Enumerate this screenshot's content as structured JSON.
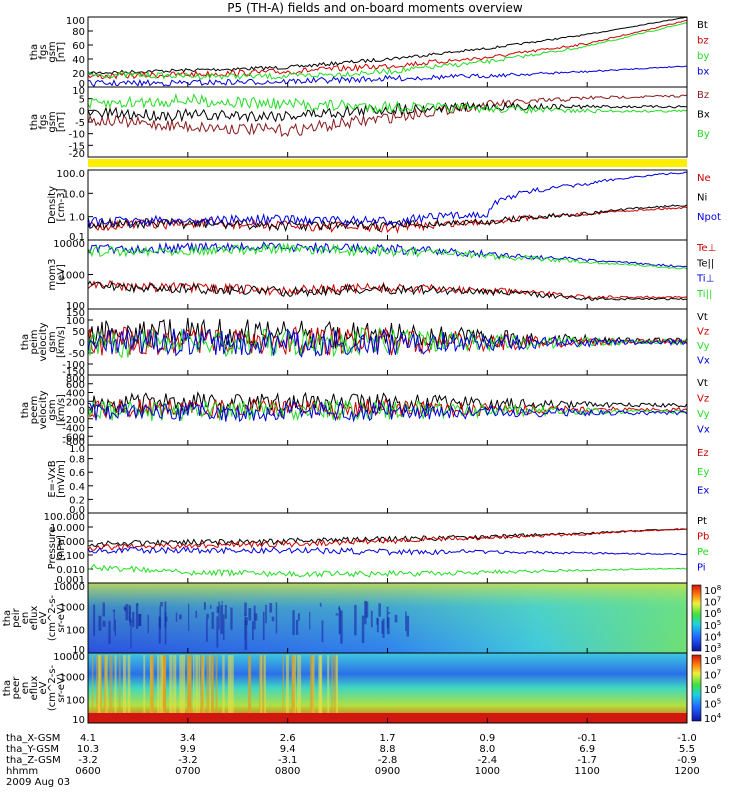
{
  "title": "P5 (TH-A) fields and on-board moments overview",
  "date": "2009 Aug 03",
  "colors": {
    "black": "#000000",
    "red": "#cc0000",
    "green": "#22dd22",
    "blue": "#0000dd",
    "brown": "#8b1a1a",
    "yellow": "#ffee00"
  },
  "time_axis": {
    "start": "0600",
    "end": "1200",
    "range_hours": [
      6,
      12
    ]
  },
  "footer": {
    "labels": [
      "tha_X-GSM",
      "tha_Y-GSM",
      "tha_Z-GSM",
      "hhmm"
    ],
    "columns": [
      [
        "4.1",
        "10.3",
        "-3.2",
        "0600"
      ],
      [
        "3.4",
        "9.9",
        "-3.2",
        "0700"
      ],
      [
        "2.6",
        "9.4",
        "-3.1",
        "0800"
      ],
      [
        "1.7",
        "8.8",
        "-2.8",
        "0900"
      ],
      [
        "0.9",
        "8.0",
        "-2.4",
        "1000"
      ],
      [
        "-0.1",
        "6.9",
        "-1.7",
        "1100"
      ],
      [
        "-1.0",
        "5.5",
        "-0.9",
        "1200"
      ]
    ]
  },
  "chart_data": [
    {
      "type": "line",
      "ylabel": [
        "tha",
        "fgs",
        "gsm",
        "[nT]"
      ],
      "yticks": [
        "100",
        "80",
        "60",
        "40",
        "20",
        "0"
      ],
      "ylim": [
        0,
        100
      ],
      "series": [
        {
          "name": "Bt",
          "color": "#000000",
          "x": [
            6,
            7,
            8,
            9,
            10,
            11,
            12
          ],
          "y": [
            20,
            24,
            28,
            40,
            55,
            75,
            100
          ]
        },
        {
          "name": "bz",
          "color": "#cc0000",
          "x": [
            6,
            7,
            8,
            9,
            10,
            11,
            12
          ],
          "y": [
            15,
            18,
            22,
            30,
            42,
            62,
            95
          ]
        },
        {
          "name": "by",
          "color": "#22dd22",
          "x": [
            6,
            7,
            8,
            9,
            10,
            11,
            12
          ],
          "y": [
            18,
            16,
            15,
            22,
            36,
            58,
            92
          ]
        },
        {
          "name": "bx",
          "color": "#0000dd",
          "x": [
            6,
            7,
            8,
            9,
            10,
            11,
            12
          ],
          "y": [
            5,
            6,
            8,
            12,
            16,
            22,
            30
          ]
        }
      ]
    },
    {
      "type": "line",
      "ylabel": [
        "tha",
        "fgs",
        "gsm",
        "[nT]"
      ],
      "yticks": [
        "10",
        "5",
        "0",
        "-5",
        "-10",
        "-15",
        "-20"
      ],
      "ylim": [
        -22,
        10
      ],
      "series": [
        {
          "name": "Bz",
          "color": "#8b1a1a",
          "x": [
            6,
            7,
            8,
            9,
            10,
            11,
            12
          ],
          "y": [
            -5,
            -8,
            -10,
            -4,
            2,
            5,
            6
          ]
        },
        {
          "name": "Bx",
          "color": "#000000",
          "x": [
            6,
            7,
            8,
            9,
            10,
            11,
            12
          ],
          "y": [
            -2,
            -3,
            -3,
            0,
            1,
            1,
            1
          ]
        },
        {
          "name": "By",
          "color": "#22dd22",
          "x": [
            6,
            7,
            8,
            9,
            10,
            11,
            12
          ],
          "y": [
            2,
            4,
            2,
            1,
            0,
            -1,
            -1
          ]
        }
      ]
    },
    {
      "type": "line",
      "ylabel": [
        "Density",
        "[cm-3]"
      ],
      "yticks": [
        "100.0",
        "10.0",
        "1.0",
        "0.1"
      ],
      "ylim": [
        0.08,
        200
      ],
      "log": true,
      "series": [
        {
          "name": "Ne",
          "color": "#cc0000",
          "x": [
            6,
            7,
            8,
            9,
            10,
            11,
            12
          ],
          "y": [
            0.4,
            0.5,
            0.4,
            0.3,
            0.6,
            1.5,
            3
          ]
        },
        {
          "name": "Ni",
          "color": "#000000",
          "x": [
            6,
            7,
            8,
            9,
            10,
            11,
            12
          ],
          "y": [
            0.5,
            0.5,
            0.4,
            0.4,
            0.6,
            1.5,
            4
          ]
        },
        {
          "name": "Npot",
          "color": "#0000dd",
          "x": [
            6,
            7,
            8,
            9,
            10,
            11,
            12
          ],
          "y": [
            0.6,
            0.7,
            0.8,
            0.6,
            1.5,
            40,
            150
          ]
        }
      ]
    },
    {
      "type": "line",
      "ylabel": [
        "mom3",
        "[eV]"
      ],
      "yticks": [
        "10000",
        "1000",
        "100"
      ],
      "ylim": [
        60,
        12000
      ],
      "log": true,
      "series": [
        {
          "name": "Te⊥",
          "color": "#cc0000",
          "x": [
            6,
            7,
            8,
            9,
            10,
            11,
            12
          ],
          "y": [
            400,
            300,
            250,
            300,
            250,
            150,
            150
          ]
        },
        {
          "name": "Te||",
          "color": "#000000",
          "x": [
            6,
            7,
            8,
            9,
            10,
            11,
            12
          ],
          "y": [
            350,
            280,
            230,
            280,
            230,
            130,
            130
          ]
        },
        {
          "name": "Ti⊥",
          "color": "#0000dd",
          "x": [
            6,
            7,
            8,
            9,
            10,
            11,
            12
          ],
          "y": [
            6000,
            6500,
            7000,
            6000,
            4000,
            2500,
            1500
          ]
        },
        {
          "name": "Ti||",
          "color": "#22dd22",
          "x": [
            6,
            7,
            8,
            9,
            10,
            11,
            12
          ],
          "y": [
            5000,
            5500,
            6000,
            5000,
            3500,
            2200,
            1300
          ]
        }
      ]
    },
    {
      "type": "line",
      "ylabel": [
        "tha",
        "peim",
        "velocity",
        "gsm",
        "[km/s]"
      ],
      "yticks": [
        "150",
        "100",
        "50",
        "0",
        "-50",
        "-100",
        "-150"
      ],
      "ylim": [
        -160,
        160
      ],
      "series": [
        {
          "name": "Vt",
          "color": "#000000",
          "x": [
            6,
            7,
            8,
            9,
            10,
            11,
            12
          ],
          "y": [
            40,
            50,
            40,
            30,
            20,
            10,
            5
          ]
        },
        {
          "name": "Vz",
          "color": "#cc0000",
          "x": [
            6,
            7,
            8,
            9,
            10,
            11,
            12
          ],
          "y": [
            0,
            10,
            5,
            0,
            0,
            0,
            0
          ]
        },
        {
          "name": "Vy",
          "color": "#22dd22",
          "x": [
            6,
            7,
            8,
            9,
            10,
            11,
            12
          ],
          "y": [
            -10,
            -5,
            0,
            0,
            0,
            0,
            0
          ]
        },
        {
          "name": "Vx",
          "color": "#0000dd",
          "x": [
            6,
            7,
            8,
            9,
            10,
            11,
            12
          ],
          "y": [
            5,
            0,
            -5,
            0,
            0,
            0,
            0
          ]
        }
      ]
    },
    {
      "type": "line",
      "ylabel": [
        "tha",
        "peem",
        "velocity",
        "gsm",
        "[km/s]"
      ],
      "yticks": [
        "800",
        "600",
        "400",
        "200",
        "0",
        "-200",
        "-400",
        "-600",
        "-800"
      ],
      "ylim": [
        -800,
        800
      ],
      "series": [
        {
          "name": "Vt",
          "color": "#000000",
          "x": [
            6,
            7,
            8,
            9,
            10,
            11,
            12
          ],
          "y": [
            150,
            170,
            160,
            150,
            140,
            120,
            110
          ]
        },
        {
          "name": "Vz",
          "color": "#cc0000",
          "x": [
            6,
            7,
            8,
            9,
            10,
            11,
            12
          ],
          "y": [
            30,
            40,
            30,
            20,
            20,
            10,
            10
          ]
        },
        {
          "name": "Vy",
          "color": "#22dd22",
          "x": [
            6,
            7,
            8,
            9,
            10,
            11,
            12
          ],
          "y": [
            -30,
            -20,
            -10,
            0,
            -20,
            -30,
            -40
          ]
        },
        {
          "name": "Vx",
          "color": "#0000dd",
          "x": [
            6,
            7,
            8,
            9,
            10,
            11,
            12
          ],
          "y": [
            -50,
            -60,
            -40,
            -30,
            -50,
            -60,
            -70
          ]
        }
      ]
    },
    {
      "type": "line",
      "ylabel": [
        "E=-VxB",
        "[mV/m]"
      ],
      "yticks": [
        "1.0",
        "0.8",
        "0.6",
        "0.4",
        "0.2",
        "0.0"
      ],
      "ylim": [
        0,
        1
      ],
      "series": [
        {
          "name": "Ez",
          "color": "#cc0000",
          "x": [],
          "y": []
        },
        {
          "name": "Ey",
          "color": "#22dd22",
          "x": [],
          "y": []
        },
        {
          "name": "Ex",
          "color": "#0000dd",
          "x": [],
          "y": []
        }
      ]
    },
    {
      "type": "line",
      "ylabel": [
        "Pressure",
        "[nPa]"
      ],
      "yticks": [
        "100.000",
        "10.000",
        "1.000",
        "0.100",
        "0.010",
        "0.001"
      ],
      "ylim": [
        0.0006,
        150
      ],
      "log": true,
      "series": [
        {
          "name": "Pt",
          "color": "#000000",
          "x": [
            6,
            7,
            8,
            9,
            10,
            11,
            12
          ],
          "y": [
            0.6,
            0.8,
            1.0,
            1.4,
            2.2,
            4,
            9
          ]
        },
        {
          "name": "Pb",
          "color": "#cc0000",
          "x": [
            6,
            7,
            8,
            9,
            10,
            11,
            12
          ],
          "y": [
            0.3,
            0.45,
            0.6,
            1.0,
            1.8,
            3.5,
            8.5
          ]
        },
        {
          "name": "Pe",
          "color": "#22dd22",
          "x": [
            6,
            7,
            8,
            9,
            10,
            11,
            12
          ],
          "y": [
            0.01,
            0.004,
            0.003,
            0.003,
            0.004,
            0.006,
            0.008
          ]
        },
        {
          "name": "Pi",
          "color": "#0000dd",
          "x": [
            6,
            7,
            8,
            9,
            10,
            11,
            12
          ],
          "y": [
            0.2,
            0.2,
            0.2,
            0.15,
            0.15,
            0.12,
            0.1
          ]
        }
      ]
    },
    {
      "type": "heatmap",
      "ylabel": [
        "tha",
        "peir",
        "en",
        "eflux",
        "eV",
        "(cm^2-s-",
        "sr-eV)"
      ],
      "yticks": [
        "10000",
        "1000",
        "100",
        "10"
      ],
      "cbar_ticks": [
        "10^8",
        "10^7",
        "10^6",
        "10^5",
        "10^4",
        "10^3"
      ],
      "log": true
    },
    {
      "type": "heatmap",
      "ylabel": [
        "tha",
        "peer",
        "en",
        "eflux",
        "eV",
        "(cm^2-s-",
        "sr-eV)"
      ],
      "yticks": [
        "10000",
        "1000",
        "100",
        "10"
      ],
      "cbar_ticks": [
        "10^8",
        "10^7",
        "10^6",
        "10^5",
        "10^4"
      ],
      "log": true
    }
  ]
}
